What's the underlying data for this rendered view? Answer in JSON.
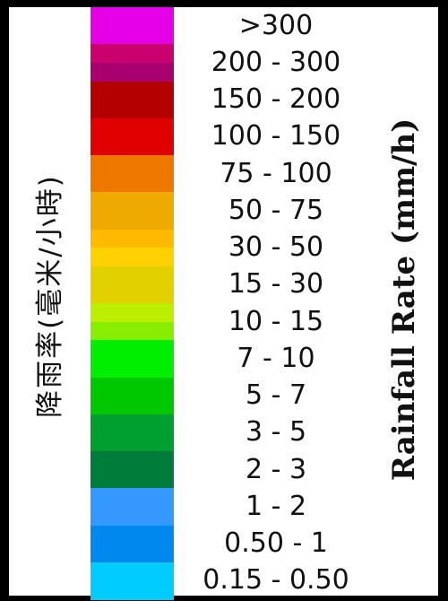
{
  "legend": {
    "title_zh": "降雨率(毫米/小時)",
    "title_en": "Rainfall Rate (mm/h)",
    "bands": [
      {
        "label": ">300",
        "colors": [
          "#e600e6"
        ]
      },
      {
        "label": "200 - 300",
        "colors": [
          "#c9006e",
          "#a8006e"
        ]
      },
      {
        "label": "150 - 200",
        "colors": [
          "#b40000"
        ]
      },
      {
        "label": "100 - 150",
        "colors": [
          "#e00000"
        ]
      },
      {
        "label": "75 - 100",
        "colors": [
          "#ee7700"
        ]
      },
      {
        "label": "50 - 75",
        "colors": [
          "#eeaa00"
        ]
      },
      {
        "label": "30 - 50",
        "colors": [
          "#ffbb00",
          "#ffd200"
        ]
      },
      {
        "label": "15 - 30",
        "colors": [
          "#e3d000"
        ]
      },
      {
        "label": "10 - 15",
        "colors": [
          "#bbee00",
          "#88ee00"
        ]
      },
      {
        "label": "7 - 10",
        "colors": [
          "#00ee00"
        ]
      },
      {
        "label": "5 - 7",
        "colors": [
          "#00c800"
        ]
      },
      {
        "label": "3 - 5",
        "colors": [
          "#00a030"
        ]
      },
      {
        "label": "2 - 3",
        "colors": [
          "#007c3a"
        ]
      },
      {
        "label": "1 - 2",
        "colors": [
          "#3399ff"
        ]
      },
      {
        "label": "0.50 - 1",
        "colors": [
          "#0088ee"
        ]
      },
      {
        "label": "0.15 - 0.50",
        "colors": [
          "#00ccff"
        ]
      }
    ]
  }
}
